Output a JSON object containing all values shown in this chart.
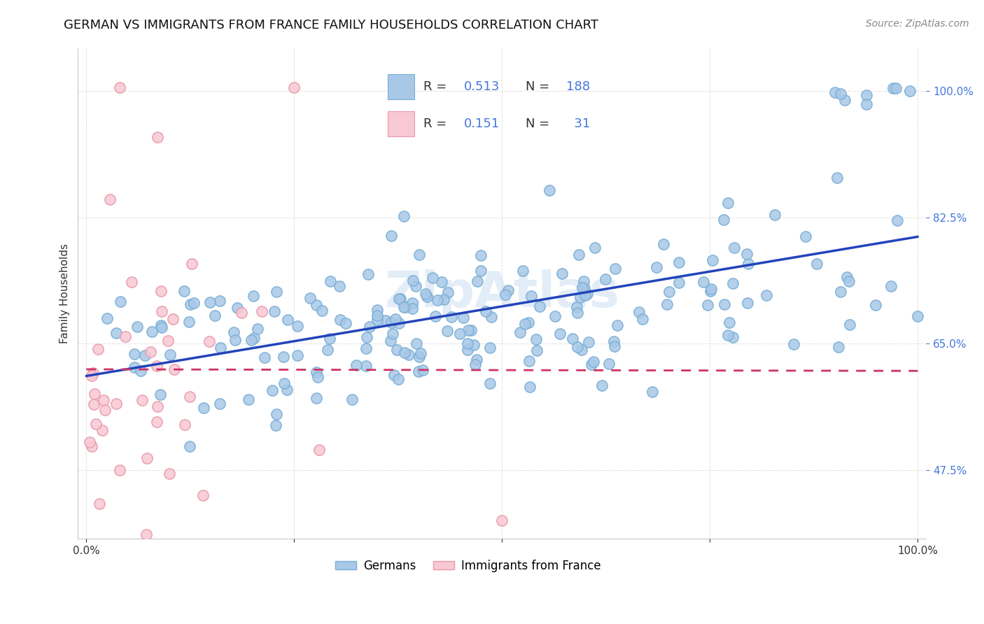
{
  "title": "GERMAN VS IMMIGRANTS FROM FRANCE FAMILY HOUSEHOLDS CORRELATION CHART",
  "source": "Source: ZipAtlas.com",
  "ylabel": "Family Households",
  "ylim": [
    0.38,
    1.06
  ],
  "ytick_vals": [
    0.475,
    0.65,
    0.825,
    1.0
  ],
  "ytick_labels": [
    "47.5%",
    "65.0%",
    "82.5%",
    "100.0%"
  ],
  "xtick_vals": [
    0.0,
    0.25,
    0.5,
    0.75,
    1.0
  ],
  "xtick_labels": [
    "0.0%",
    "",
    "",
    "",
    "100.0%"
  ],
  "legend_labels": [
    "Germans",
    "Immigrants from France"
  ],
  "blue_dot_color": "#A8C8E8",
  "blue_edge_color": "#7BAFD4",
  "pink_dot_color": "#F8C8D4",
  "pink_edge_color": "#E89AAA",
  "blue_line_color": "#2244BB",
  "pink_line_color": "#CC3366",
  "R_blue": 0.513,
  "N_blue": 188,
  "R_pink": 0.151,
  "N_pink": 31,
  "background_color": "#FFFFFF",
  "grid_color": "#CCCCCC",
  "tick_color": "#4477DD",
  "title_fontsize": 13,
  "axis_label_fontsize": 11,
  "tick_fontsize": 11,
  "source_fontsize": 10
}
